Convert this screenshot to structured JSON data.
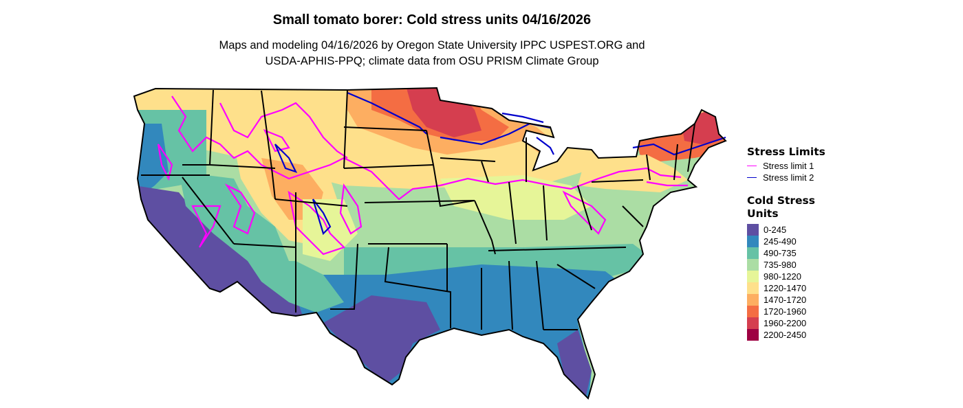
{
  "title": "Small tomato borer: Cold stress units 04/16/2026",
  "subtitle_lines": [
    "Maps and modeling 04/16/2026 by Oregon State University IPPC USPEST.ORG and",
    "USDA-APHIS-PPQ; climate data from OSU PRISM Climate Group"
  ],
  "legend": {
    "stress_limits": {
      "title": "Stress Limits",
      "items": [
        {
          "label": "Stress limit 1",
          "color": "#ff00ff"
        },
        {
          "label": "Stress limit 2",
          "color": "#0000cc"
        }
      ]
    },
    "cold_stress_units": {
      "title_lines": [
        "Cold Stress",
        "Units"
      ],
      "items": [
        {
          "label": "0-245",
          "color": "#5e4fa2"
        },
        {
          "label": "245-490",
          "color": "#3288bd"
        },
        {
          "label": "490-735",
          "color": "#66c2a5"
        },
        {
          "label": "735-980",
          "color": "#abdda4"
        },
        {
          "label": "980-1220",
          "color": "#e6f598"
        },
        {
          "label": "1220-1470",
          "color": "#fee08b"
        },
        {
          "label": "1470-1720",
          "color": "#fdae61"
        },
        {
          "label": "1720-1960",
          "color": "#f46d43"
        },
        {
          "label": "1960-2200",
          "color": "#d53e4f"
        },
        {
          "label": "2200-2450",
          "color": "#9e0142"
        }
      ]
    }
  }
}
